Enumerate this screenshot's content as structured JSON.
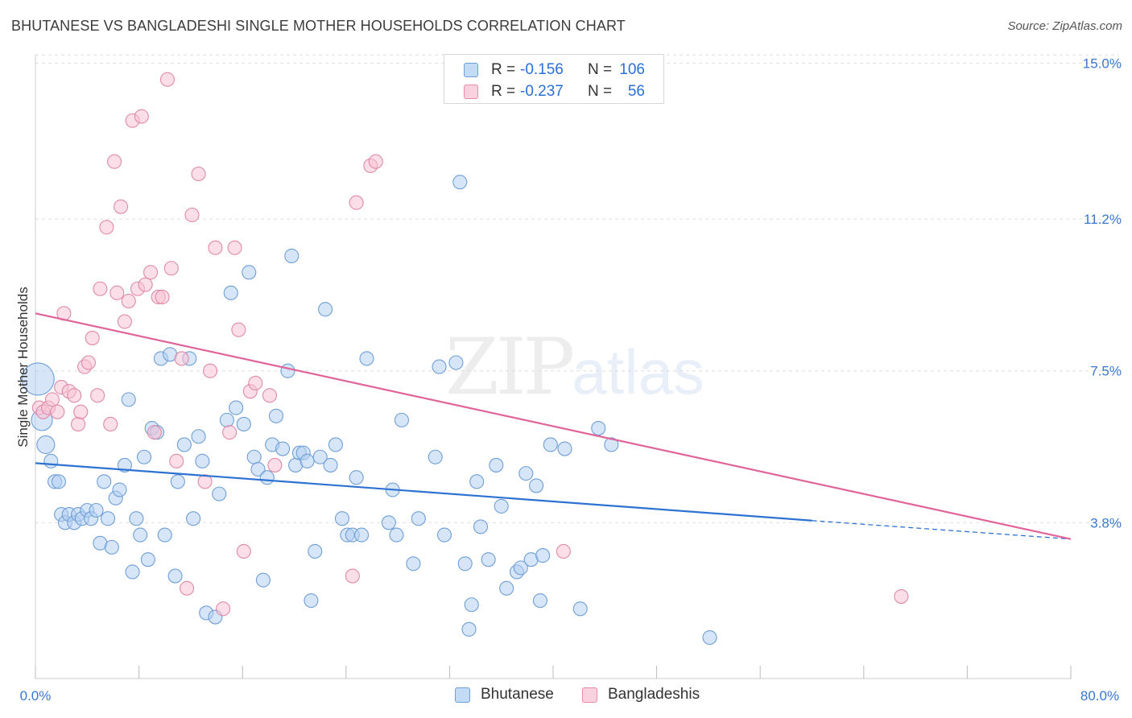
{
  "title": "BHUTANESE VS BANGLADESHI SINGLE MOTHER HOUSEHOLDS CORRELATION CHART",
  "source": "Source: ZipAtlas.com",
  "watermark": {
    "zip": "ZIP",
    "atlas": "atlas"
  },
  "legend_top": [
    {
      "r_label": "R =",
      "r_value": "-0.156",
      "n_label": "N =",
      "n_value": "106",
      "color": "#a8c8f0",
      "border": "#6a9fd8"
    },
    {
      "r_label": "R =",
      "r_value": "-0.237",
      "n_label": "N =",
      "n_value": "56",
      "color": "#f8bfd0",
      "border": "#e58aa8"
    }
  ],
  "legend_bottom": [
    {
      "label": "Bhutanese",
      "color": "#a8c8f0",
      "border": "#6a9fd8"
    },
    {
      "label": "Bangladeshis",
      "color": "#f8bfd0",
      "border": "#e58aa8"
    }
  ],
  "chart_data": {
    "type": "scatter",
    "title": "BHUTANESE VS BANGLADESHI SINGLE MOTHER HOUSEHOLDS CORRELATION CHART",
    "xlabel": "",
    "ylabel": "Single Mother Households",
    "xlim": [
      0,
      80
    ],
    "ylim": [
      0,
      15.4
    ],
    "x_tick_labels": [
      "0.0%",
      "80.0%"
    ],
    "y_ticks": [
      3.8,
      7.5,
      11.2,
      15.0
    ],
    "y_tick_labels": [
      "3.8%",
      "7.5%",
      "11.2%",
      "15.0%"
    ],
    "grid": "horizontal dashed",
    "colors": {
      "bhutanese": "#6fa3e0",
      "bangladeshis": "#e890b0",
      "blue_line": "#2d72d2",
      "pink_line": "#e0649a",
      "tick_label": "#3a78d0"
    },
    "series": [
      {
        "name": "Bhutanese",
        "trend": {
          "x": [
            0,
            60.0
          ],
          "y": [
            5.25,
            3.85
          ],
          "dashed_to": [
            80,
            3.4
          ]
        },
        "points": [
          [
            0.2,
            7.3
          ],
          [
            0.5,
            6.3
          ],
          [
            0.8,
            5.7
          ],
          [
            1.2,
            5.3
          ],
          [
            1.5,
            4.8
          ],
          [
            1.8,
            4.8
          ],
          [
            2.0,
            4.0
          ],
          [
            2.3,
            3.8
          ],
          [
            2.6,
            4.0
          ],
          [
            3.0,
            3.8
          ],
          [
            3.3,
            4.0
          ],
          [
            3.6,
            3.9
          ],
          [
            4.0,
            4.1
          ],
          [
            4.3,
            3.9
          ],
          [
            4.7,
            4.1
          ],
          [
            5.0,
            3.3
          ],
          [
            5.3,
            4.8
          ],
          [
            5.6,
            3.9
          ],
          [
            5.9,
            3.2
          ],
          [
            6.2,
            4.4
          ],
          [
            6.5,
            4.6
          ],
          [
            6.9,
            5.2
          ],
          [
            7.2,
            6.8
          ],
          [
            7.5,
            2.6
          ],
          [
            7.8,
            3.9
          ],
          [
            8.1,
            3.5
          ],
          [
            8.4,
            5.4
          ],
          [
            8.7,
            2.9
          ],
          [
            9.0,
            6.1
          ],
          [
            9.4,
            6.0
          ],
          [
            9.7,
            7.8
          ],
          [
            10.0,
            3.5
          ],
          [
            10.4,
            7.9
          ],
          [
            10.8,
            2.5
          ],
          [
            11.0,
            4.8
          ],
          [
            11.5,
            5.7
          ],
          [
            11.9,
            7.8
          ],
          [
            12.2,
            3.9
          ],
          [
            12.6,
            5.9
          ],
          [
            12.9,
            5.3
          ],
          [
            13.2,
            1.6
          ],
          [
            13.9,
            1.5
          ],
          [
            14.2,
            4.5
          ],
          [
            14.8,
            6.3
          ],
          [
            15.1,
            9.4
          ],
          [
            15.5,
            6.6
          ],
          [
            16.1,
            6.2
          ],
          [
            16.5,
            9.9
          ],
          [
            16.9,
            5.4
          ],
          [
            17.2,
            5.1
          ],
          [
            17.6,
            2.4
          ],
          [
            17.9,
            4.9
          ],
          [
            18.3,
            5.7
          ],
          [
            18.6,
            6.4
          ],
          [
            19.1,
            5.6
          ],
          [
            19.5,
            7.5
          ],
          [
            19.8,
            10.3
          ],
          [
            20.1,
            5.2
          ],
          [
            20.4,
            5.5
          ],
          [
            20.7,
            5.5
          ],
          [
            21.0,
            5.3
          ],
          [
            21.3,
            1.9
          ],
          [
            21.6,
            3.1
          ],
          [
            22.0,
            5.4
          ],
          [
            22.4,
            9.0
          ],
          [
            22.8,
            5.2
          ],
          [
            23.2,
            5.7
          ],
          [
            23.7,
            3.9
          ],
          [
            24.1,
            3.5
          ],
          [
            24.5,
            3.5
          ],
          [
            24.8,
            4.9
          ],
          [
            25.2,
            3.5
          ],
          [
            25.6,
            7.8
          ],
          [
            27.3,
            3.8
          ],
          [
            27.6,
            4.6
          ],
          [
            27.9,
            3.5
          ],
          [
            28.3,
            6.3
          ],
          [
            29.2,
            2.8
          ],
          [
            29.6,
            3.9
          ],
          [
            30.9,
            5.4
          ],
          [
            31.2,
            7.6
          ],
          [
            31.6,
            3.5
          ],
          [
            32.5,
            7.7
          ],
          [
            32.8,
            12.1
          ],
          [
            33.2,
            2.8
          ],
          [
            33.7,
            1.8
          ],
          [
            33.5,
            1.2
          ],
          [
            34.1,
            4.8
          ],
          [
            34.4,
            3.7
          ],
          [
            35.0,
            2.9
          ],
          [
            35.6,
            5.2
          ],
          [
            36.0,
            4.2
          ],
          [
            36.4,
            2.2
          ],
          [
            37.2,
            2.6
          ],
          [
            37.5,
            2.7
          ],
          [
            37.9,
            5.0
          ],
          [
            38.3,
            2.9
          ],
          [
            38.7,
            4.7
          ],
          [
            39.0,
            1.9
          ],
          [
            39.2,
            3.0
          ],
          [
            39.8,
            5.7
          ],
          [
            40.9,
            5.6
          ],
          [
            42.1,
            1.7
          ],
          [
            43.5,
            6.1
          ],
          [
            44.5,
            5.7
          ],
          [
            52.1,
            1.0
          ]
        ]
      },
      {
        "name": "Bangladeshis",
        "trend": {
          "x": [
            0,
            80
          ],
          "y": [
            8.9,
            3.4
          ]
        },
        "points": [
          [
            0.3,
            6.6
          ],
          [
            0.6,
            6.5
          ],
          [
            1.0,
            6.6
          ],
          [
            1.3,
            6.8
          ],
          [
            1.7,
            6.5
          ],
          [
            2.0,
            7.1
          ],
          [
            2.2,
            8.9
          ],
          [
            2.6,
            7.0
          ],
          [
            3.0,
            6.9
          ],
          [
            3.3,
            6.2
          ],
          [
            3.5,
            6.5
          ],
          [
            3.8,
            7.6
          ],
          [
            4.1,
            7.7
          ],
          [
            4.4,
            8.3
          ],
          [
            4.8,
            6.9
          ],
          [
            5.0,
            9.5
          ],
          [
            5.5,
            11.0
          ],
          [
            5.8,
            6.2
          ],
          [
            6.1,
            12.6
          ],
          [
            6.3,
            9.4
          ],
          [
            6.6,
            11.5
          ],
          [
            6.9,
            8.7
          ],
          [
            7.2,
            9.2
          ],
          [
            7.5,
            13.6
          ],
          [
            7.9,
            9.5
          ],
          [
            8.2,
            13.7
          ],
          [
            8.5,
            9.6
          ],
          [
            8.9,
            9.9
          ],
          [
            9.2,
            6.0
          ],
          [
            9.5,
            9.3
          ],
          [
            9.8,
            9.3
          ],
          [
            10.2,
            14.6
          ],
          [
            10.5,
            10.0
          ],
          [
            10.9,
            5.3
          ],
          [
            11.3,
            7.8
          ],
          [
            11.7,
            2.2
          ],
          [
            12.1,
            11.3
          ],
          [
            12.6,
            12.3
          ],
          [
            13.1,
            4.8
          ],
          [
            13.5,
            7.5
          ],
          [
            13.9,
            10.5
          ],
          [
            14.5,
            1.7
          ],
          [
            15.0,
            6.0
          ],
          [
            15.4,
            10.5
          ],
          [
            15.7,
            8.5
          ],
          [
            16.1,
            3.1
          ],
          [
            16.6,
            7.0
          ],
          [
            17.0,
            7.2
          ],
          [
            18.1,
            6.9
          ],
          [
            18.5,
            5.2
          ],
          [
            24.5,
            2.5
          ],
          [
            24.8,
            11.6
          ],
          [
            25.9,
            12.5
          ],
          [
            26.3,
            12.6
          ],
          [
            40.8,
            3.1
          ],
          [
            66.9,
            2.0
          ]
        ]
      }
    ]
  }
}
